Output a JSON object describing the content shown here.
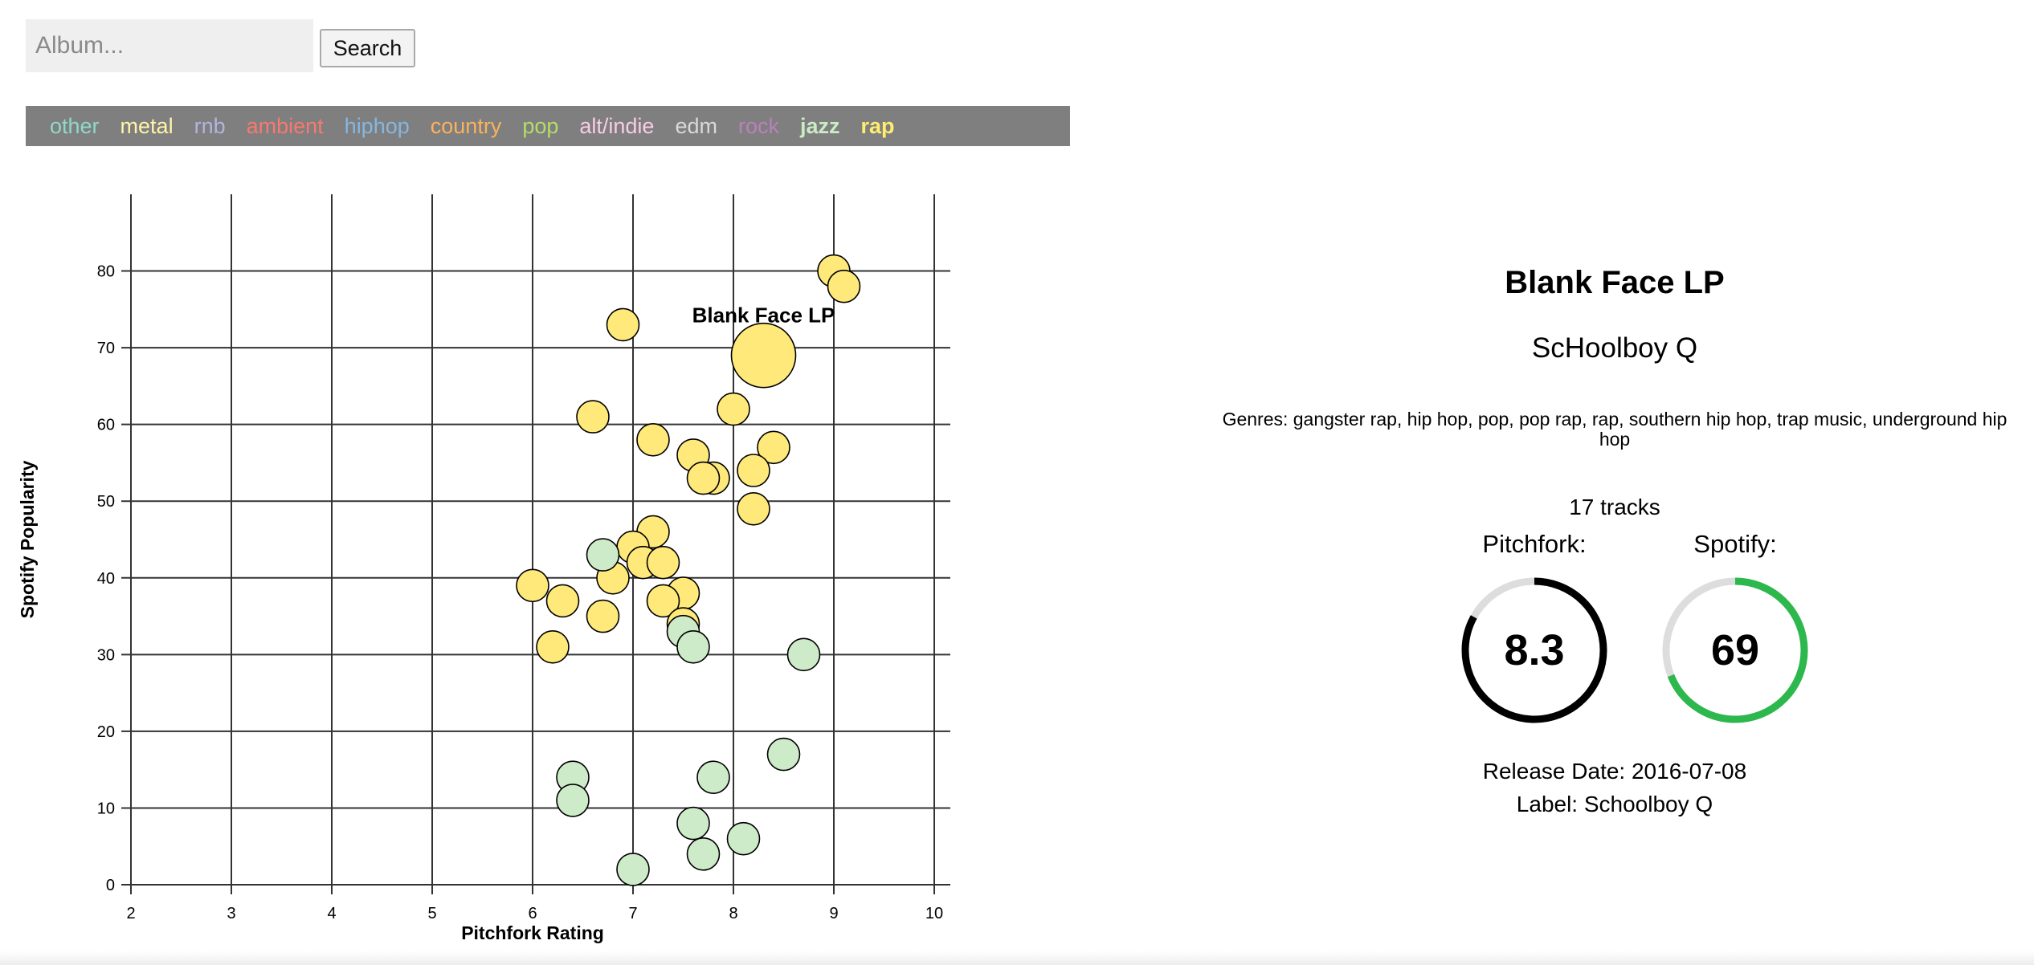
{
  "search": {
    "placeholder": "Album...",
    "button_label": "Search"
  },
  "genres": [
    {
      "label": "other",
      "color": "#8fd9c6",
      "active": false
    },
    {
      "label": "metal",
      "color": "#fff4a8",
      "active": false
    },
    {
      "label": "rnb",
      "color": "#b3b3dd",
      "active": false
    },
    {
      "label": "ambient",
      "color": "#f8796e",
      "active": false
    },
    {
      "label": "hiphop",
      "color": "#85b6e0",
      "active": false
    },
    {
      "label": "country",
      "color": "#fbb25e",
      "active": false
    },
    {
      "label": "pop",
      "color": "#b3de69",
      "active": false
    },
    {
      "label": "alt/indie",
      "color": "#f9cce4",
      "active": false
    },
    {
      "label": "edm",
      "color": "#d9d9d9",
      "active": false
    },
    {
      "label": "rock",
      "color": "#bb80bb",
      "active": false
    },
    {
      "label": "jazz",
      "color": "#cbebc5",
      "active": true
    },
    {
      "label": "rap",
      "color": "#ffed6f",
      "active": true
    }
  ],
  "chart_data": {
    "type": "scatter",
    "xlabel": "Pitchfork Rating",
    "ylabel": "Spotify Popularity",
    "xlim": [
      2,
      10
    ],
    "ylim": [
      0,
      90
    ],
    "xticks": [
      2,
      3,
      4,
      5,
      6,
      7,
      8,
      9,
      10
    ],
    "yticks": [
      0,
      10,
      20,
      30,
      40,
      50,
      60,
      70,
      80
    ],
    "grid": true,
    "highlight_label": "Blank Face LP",
    "series": [
      {
        "name": "rap",
        "color": "#ffe97a",
        "points": [
          [
            9.0,
            80
          ],
          [
            9.1,
            78
          ],
          [
            6.9,
            73
          ],
          [
            6.6,
            61
          ],
          [
            8.0,
            62
          ],
          [
            7.2,
            58
          ],
          [
            7.6,
            56
          ],
          [
            8.4,
            57
          ],
          [
            7.8,
            53
          ],
          [
            7.7,
            53
          ],
          [
            8.2,
            54
          ],
          [
            8.2,
            49
          ],
          [
            7.2,
            46
          ],
          [
            7.0,
            44
          ],
          [
            7.1,
            42
          ],
          [
            7.3,
            42
          ],
          [
            6.8,
            40
          ],
          [
            6.0,
            39
          ],
          [
            6.3,
            37
          ],
          [
            7.5,
            38
          ],
          [
            7.3,
            37
          ],
          [
            6.7,
            35
          ],
          [
            7.5,
            34
          ],
          [
            6.2,
            31
          ]
        ]
      },
      {
        "name": "jazz",
        "color": "#cdebc8",
        "points": [
          [
            6.7,
            43
          ],
          [
            7.5,
            33
          ],
          [
            7.6,
            31
          ],
          [
            8.7,
            30
          ],
          [
            8.5,
            17
          ],
          [
            6.4,
            14
          ],
          [
            7.8,
            14
          ],
          [
            6.4,
            11
          ],
          [
            7.6,
            8
          ],
          [
            8.1,
            6
          ],
          [
            7.7,
            4
          ],
          [
            7.0,
            2
          ]
        ]
      }
    ],
    "selected": {
      "x": 8.3,
      "y": 69,
      "series": "rap"
    }
  },
  "detail": {
    "title": "Blank Face LP",
    "artist": "ScHoolboy Q",
    "genres": "Genres: gangster rap, hip hop, pop, pop rap, rap, southern hip hop, trap music, underground hip hop",
    "tracks": "17 tracks",
    "pitchfork_label": "Pitchfork:",
    "pitchfork_value": "8.3",
    "pitchfork_fraction": 0.83,
    "pitchfork_color": "#000000",
    "spotify_label": "Spotify:",
    "spotify_value": "69",
    "spotify_fraction": 0.69,
    "spotify_color": "#2db84d",
    "release_date": "Release Date: 2016-07-08",
    "label": "Label: Schoolboy Q"
  }
}
